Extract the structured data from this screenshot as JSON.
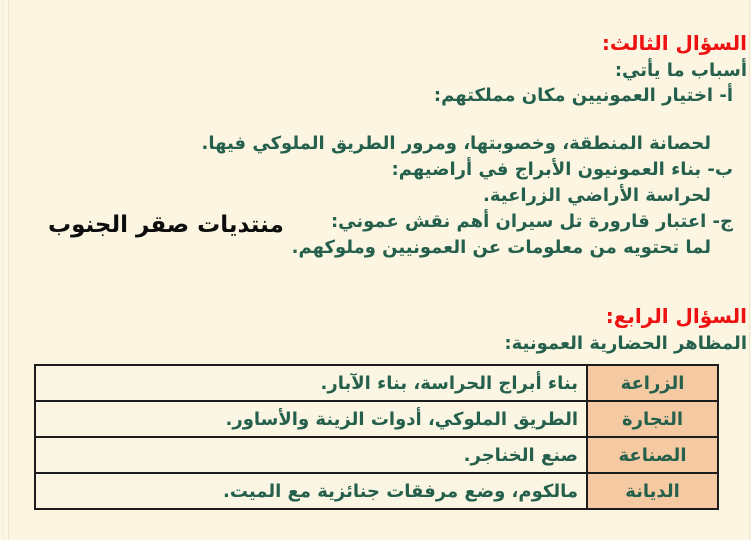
{
  "page": {
    "background": "#fcf5e2",
    "accent_red": "#ee1111",
    "text_teal": "#25604d",
    "table_header_bg": "#f5c9a2",
    "border_color": "#1c1c1c"
  },
  "watermark": "منتديات صقر الجنوب",
  "section3": {
    "title": "السؤال الثالث:",
    "intro": "أسباب ما يأتي:",
    "items": [
      {
        "prompt": "أ-  اختيار العمونيين مكان مملكتهم:",
        "answer": "لحصانة المنطقة، وخصوبتها، ومرور الطريق الملوكي فيها."
      },
      {
        "prompt": "ب- بناء العمونيون الأبراج في أراضيهم:",
        "answer": "لحراسة الأراضي الزراعية."
      },
      {
        "prompt": "ج- اعتبار قارورة تل سيران أهم نقش عموني:",
        "answer": "لما تحتويه من معلومات عن العمونيين وملوكهم."
      }
    ]
  },
  "section4": {
    "title": "السؤال الرابع:",
    "intro": "المظاهر الحضارية العمونية:",
    "table": {
      "rows": [
        {
          "header": "الزراعة",
          "value": "بناء أبراج الحراسة، بناء الآبار."
        },
        {
          "header": "التجارة",
          "value": "الطريق الملوكي، أدوات الزينة والأساور."
        },
        {
          "header": "الصناعة",
          "value": "صنع الخناجر."
        },
        {
          "header": "الديانة",
          "value": "مالكوم، وضع مرفقات جنائزية مع الميت."
        }
      ]
    }
  }
}
